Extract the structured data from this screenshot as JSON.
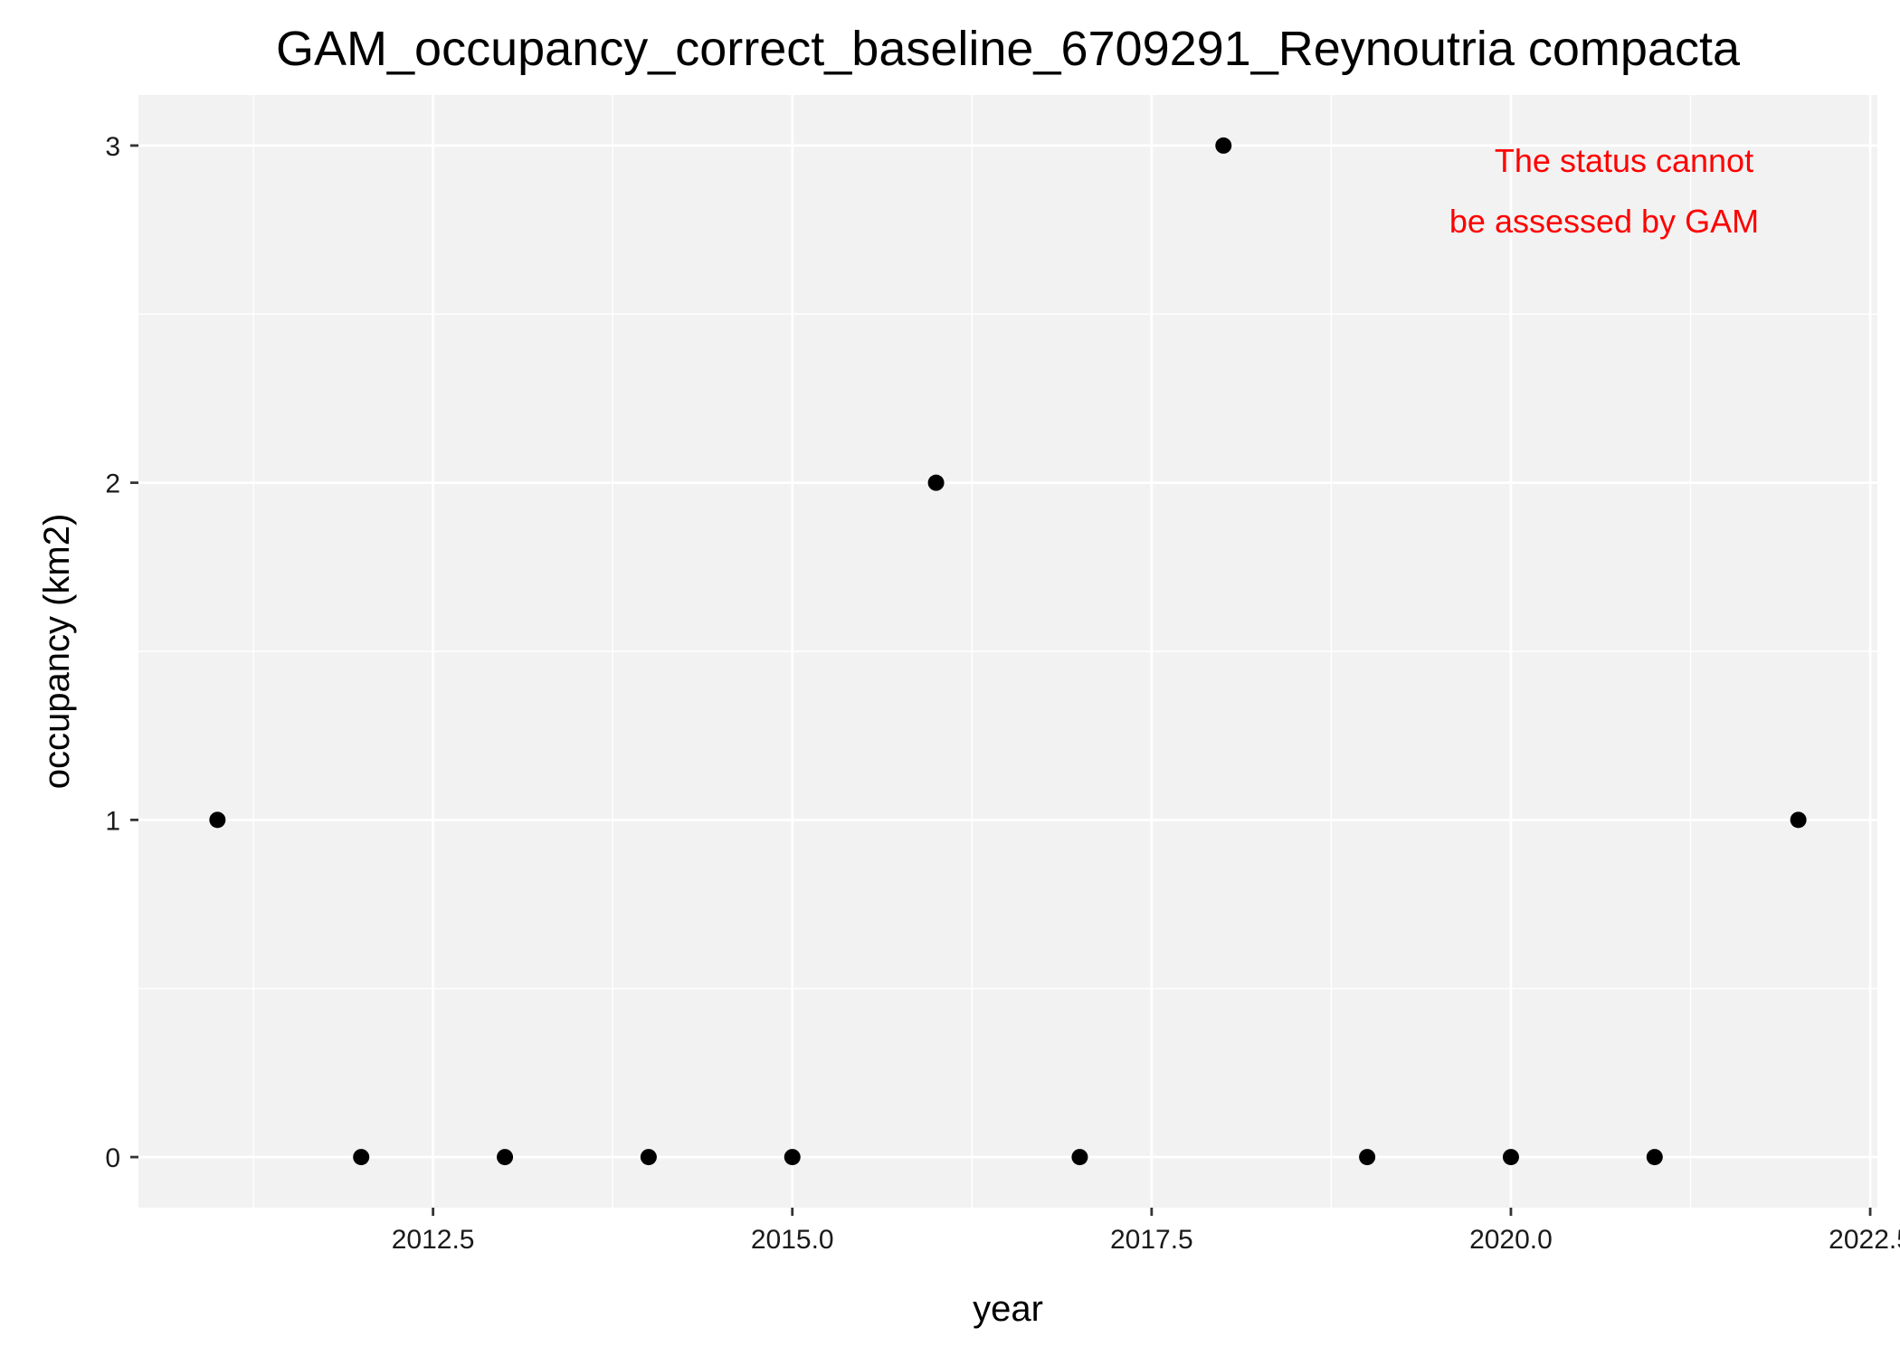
{
  "chart_data": {
    "type": "scatter",
    "title": "GAM_occupancy_correct_baseline_6709291_Reynoutria compacta",
    "xlabel": "year",
    "ylabel": "occupancy (km2)",
    "x_ticks": [
      "2012.5",
      "2015.0",
      "2017.5",
      "2020.0",
      "2022.5"
    ],
    "y_ticks": [
      "0",
      "1",
      "2",
      "3"
    ],
    "x": [
      2011,
      2012,
      2013,
      2014,
      2015,
      2016,
      2017,
      2018,
      2019,
      2020,
      2021,
      2022
    ],
    "y": [
      1,
      0,
      0,
      0,
      0,
      2,
      0,
      3,
      0,
      0,
      0,
      1
    ],
    "xlim": [
      2010.45,
      2022.55
    ],
    "ylim": [
      -0.15,
      3.15
    ],
    "grid": true,
    "legend": "none",
    "annotation": [
      "The status cannot",
      "be assessed by GAM"
    ],
    "colors": {
      "panel_background": "#f2f2f2",
      "grid": "#ffffff",
      "points": "#000000",
      "annotation": "#ff0000"
    }
  }
}
